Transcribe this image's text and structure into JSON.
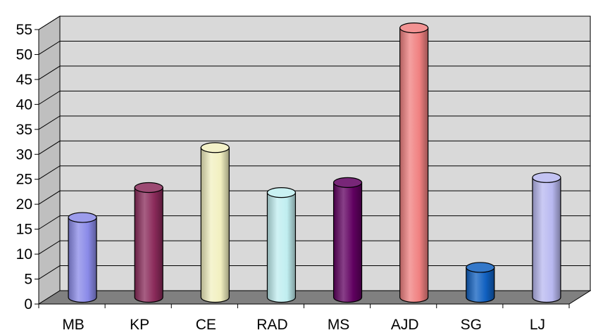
{
  "chart_data": {
    "type": "bar",
    "style": "3d-cylinder",
    "categories": [
      "MB",
      "KP",
      "CE",
      "RAD",
      "MS",
      "AJD",
      "SG",
      "LJ"
    ],
    "values": [
      16,
      22,
      30,
      21,
      23,
      54,
      6,
      24
    ],
    "colors": [
      "#8a8ae8",
      "#8a2a5a",
      "#f2f0c0",
      "#c0eef0",
      "#600060",
      "#f08080",
      "#1060c0",
      "#b8b8f0"
    ],
    "ylim": [
      0,
      55
    ],
    "yticks": [
      0,
      5,
      10,
      15,
      20,
      25,
      30,
      35,
      40,
      45,
      50,
      55
    ],
    "grid": true,
    "legend": "none",
    "title": "",
    "xlabel": "",
    "ylabel": ""
  },
  "colors": {
    "wall": "#d9d9d9",
    "floor": "#808080",
    "grid": "#000000"
  }
}
